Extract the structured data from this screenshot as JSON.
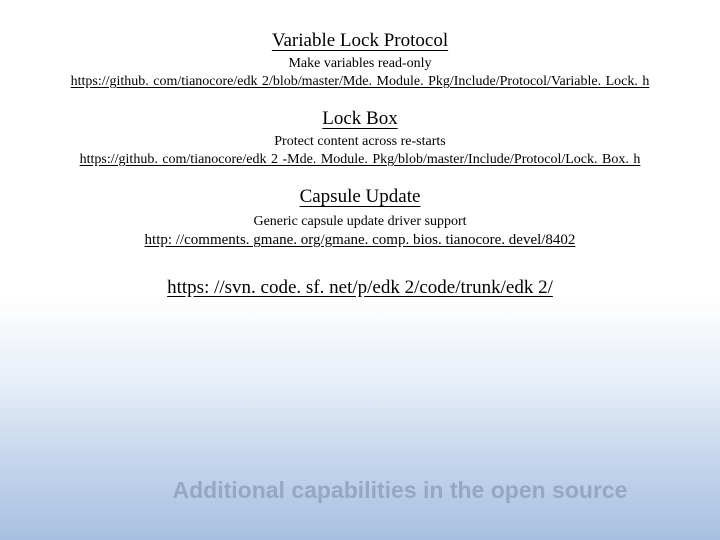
{
  "sections": [
    {
      "title": "Variable Lock Protocol",
      "desc": "Make variables read-only",
      "link": "https://github. com/tianocore/edk 2/blob/master/Mde. Module. Pkg/Include/Protocol/Variable. Lock. h"
    },
    {
      "title": "Lock Box",
      "desc": "Protect content across re-starts",
      "link": "https://github. com/tianocore/edk 2 -Mde. Module. Pkg/blob/master/Include/Protocol/Lock. Box. h"
    },
    {
      "title": "Capsule Update",
      "desc": "Generic capsule update driver support",
      "link": "http: //comments. gmane. org/gmane. comp. bios. tianocore. devel/8402"
    }
  ],
  "extra_link": "https: //svn. code. sf. net/p/edk 2/code/trunk/edk 2/",
  "footer": "Additional capabilities in the open source",
  "colors": {
    "text": "#000000",
    "footer_text": "#94a8c4",
    "bg_top": "#ffffff",
    "bg_bottom": "#a8c0e0"
  }
}
